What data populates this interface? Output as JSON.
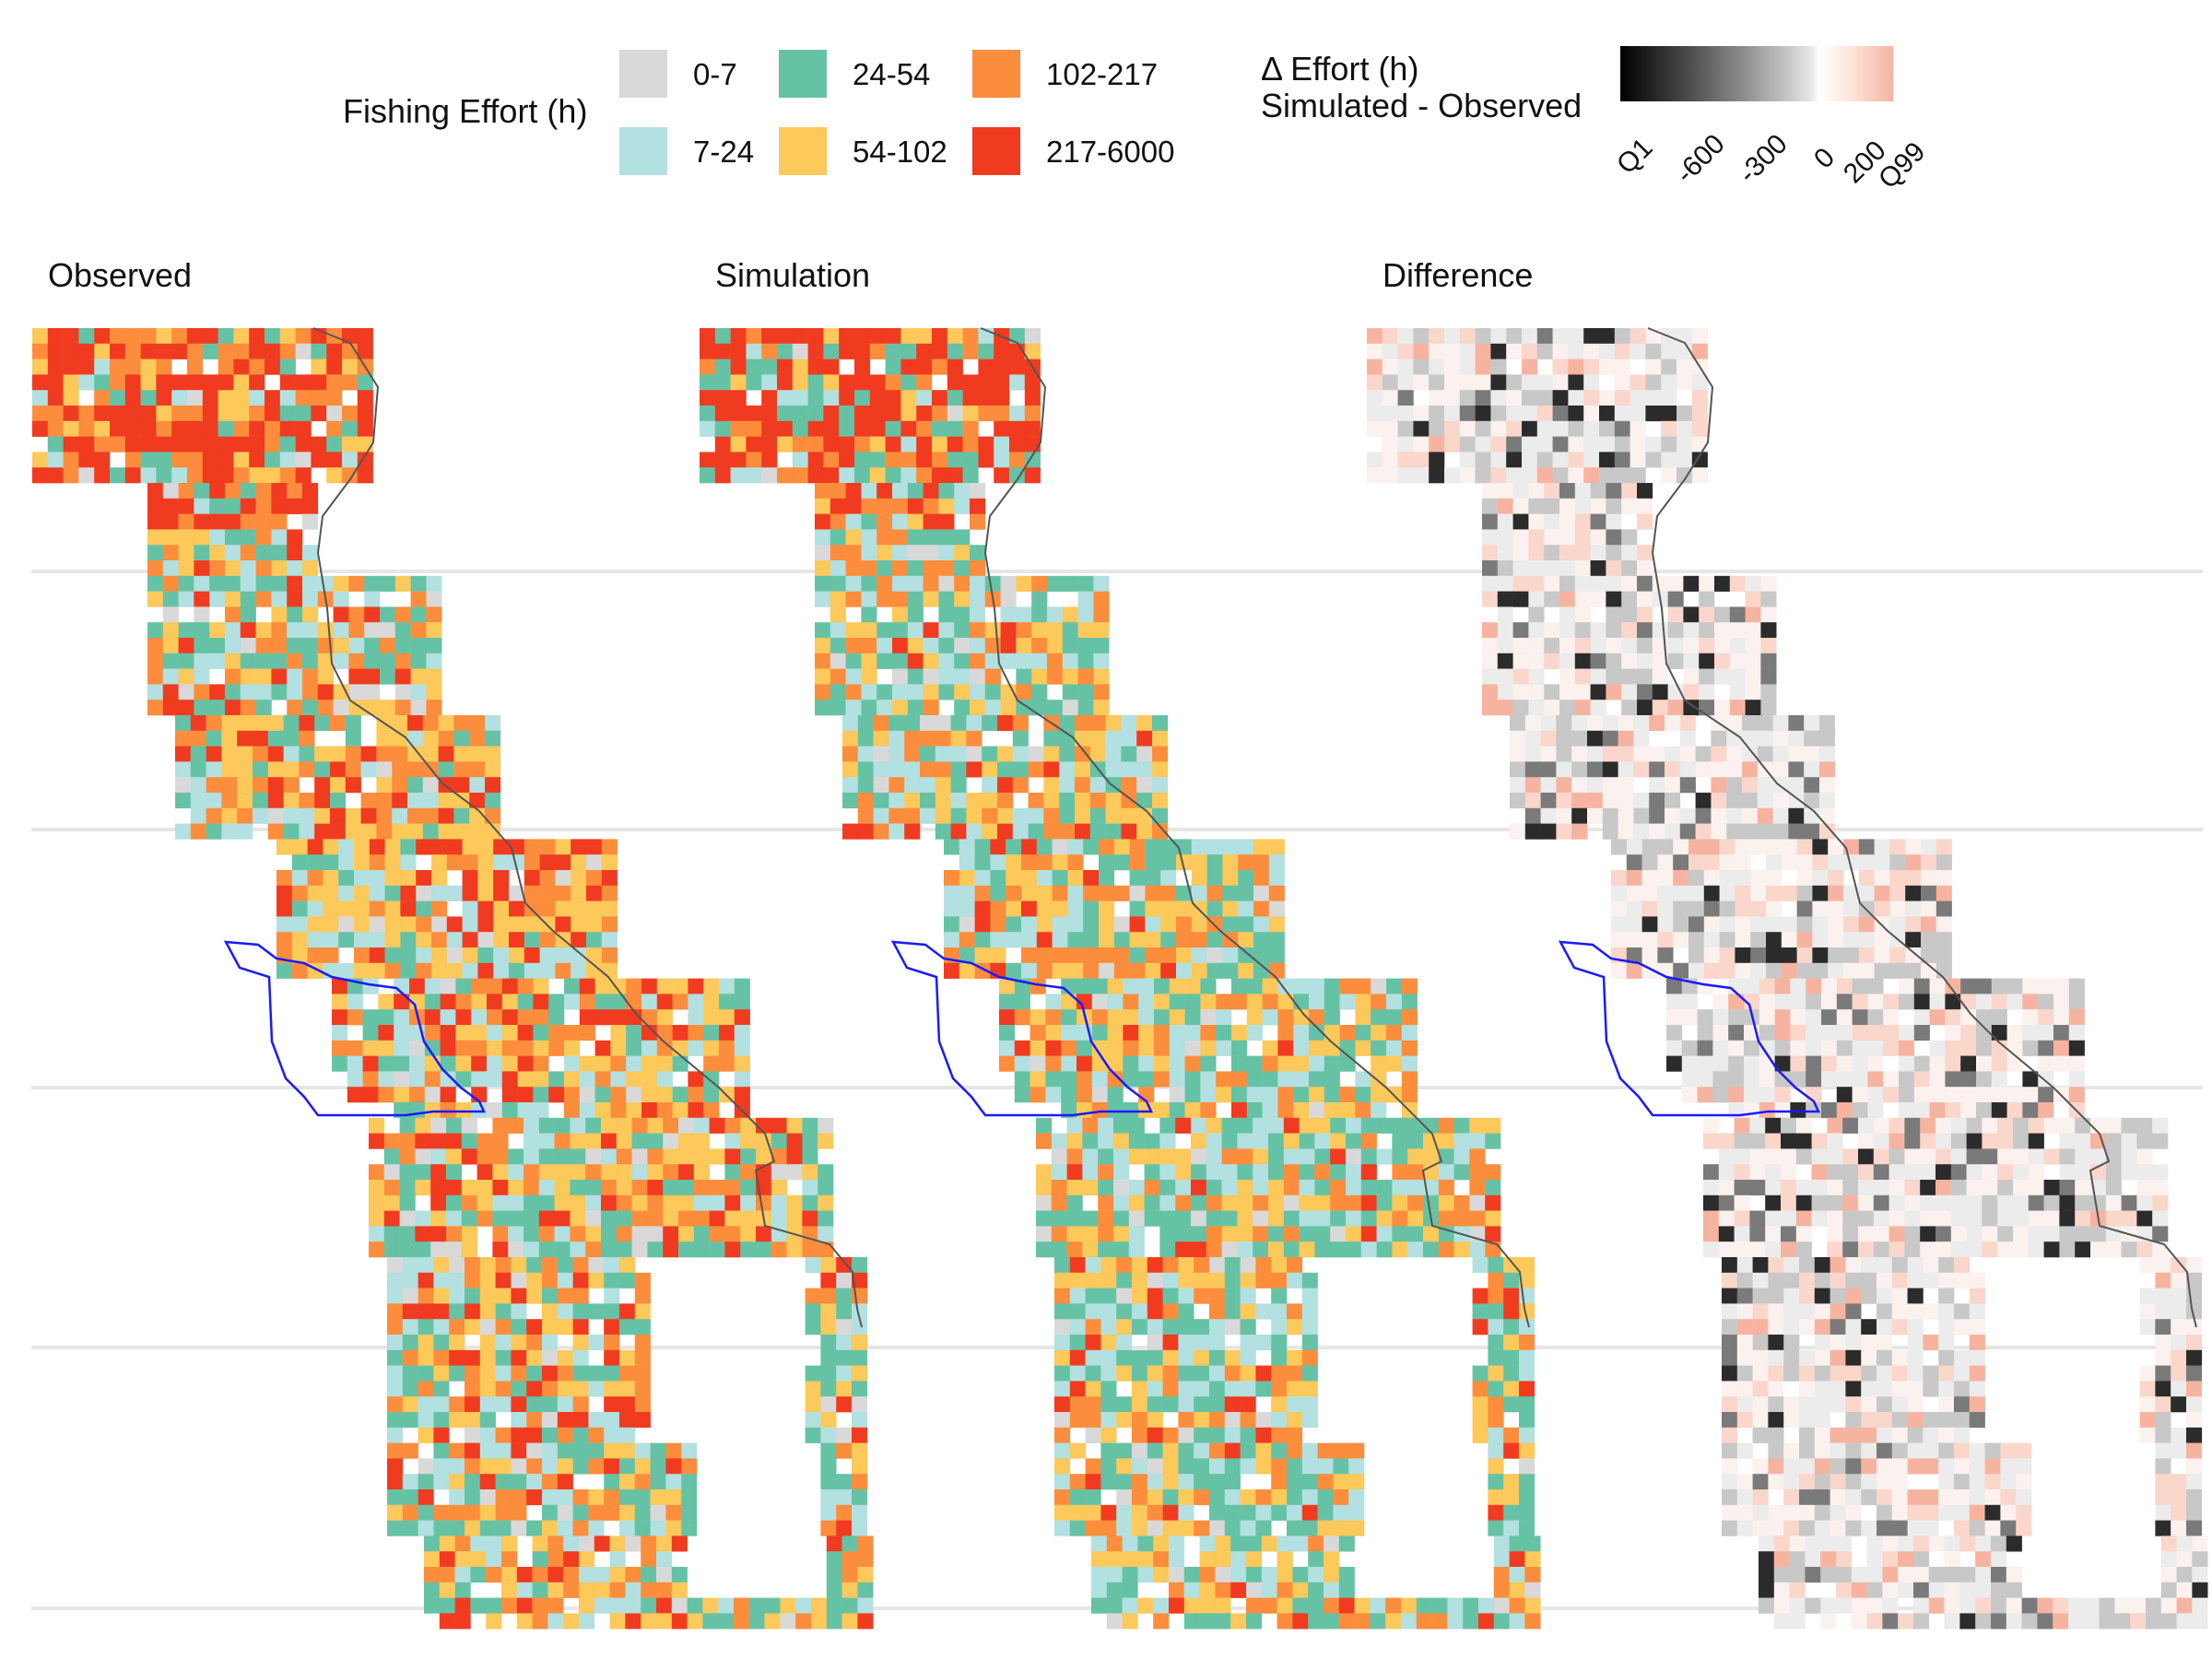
{
  "legend": {
    "title": "Fishing Effort (h)",
    "classes": [
      {
        "label": "0-7",
        "color": "#d9d9d9"
      },
      {
        "label": "7-24",
        "color": "#b3e0e0"
      },
      {
        "label": "24-54",
        "color": "#66c2a5"
      },
      {
        "label": "54-102",
        "color": "#fdc95a"
      },
      {
        "label": "102-217",
        "color": "#fc8d3c"
      },
      {
        "label": "217-6000",
        "color": "#f03b20"
      }
    ]
  },
  "diff_legend": {
    "title_line1": "Δ Effort (h)",
    "title_line2": "Simulated - Observed",
    "ticks": [
      "Q1",
      "-600",
      "-300",
      "0",
      "200",
      "Q99"
    ]
  },
  "panels": [
    {
      "title": "Observed"
    },
    {
      "title": "Simulation"
    },
    {
      "title": "Difference"
    }
  ],
  "colors": {
    "coastline": "#555555",
    "mpa_boundary": "#1a1aff",
    "gridline": "#e6e6e6"
  }
}
